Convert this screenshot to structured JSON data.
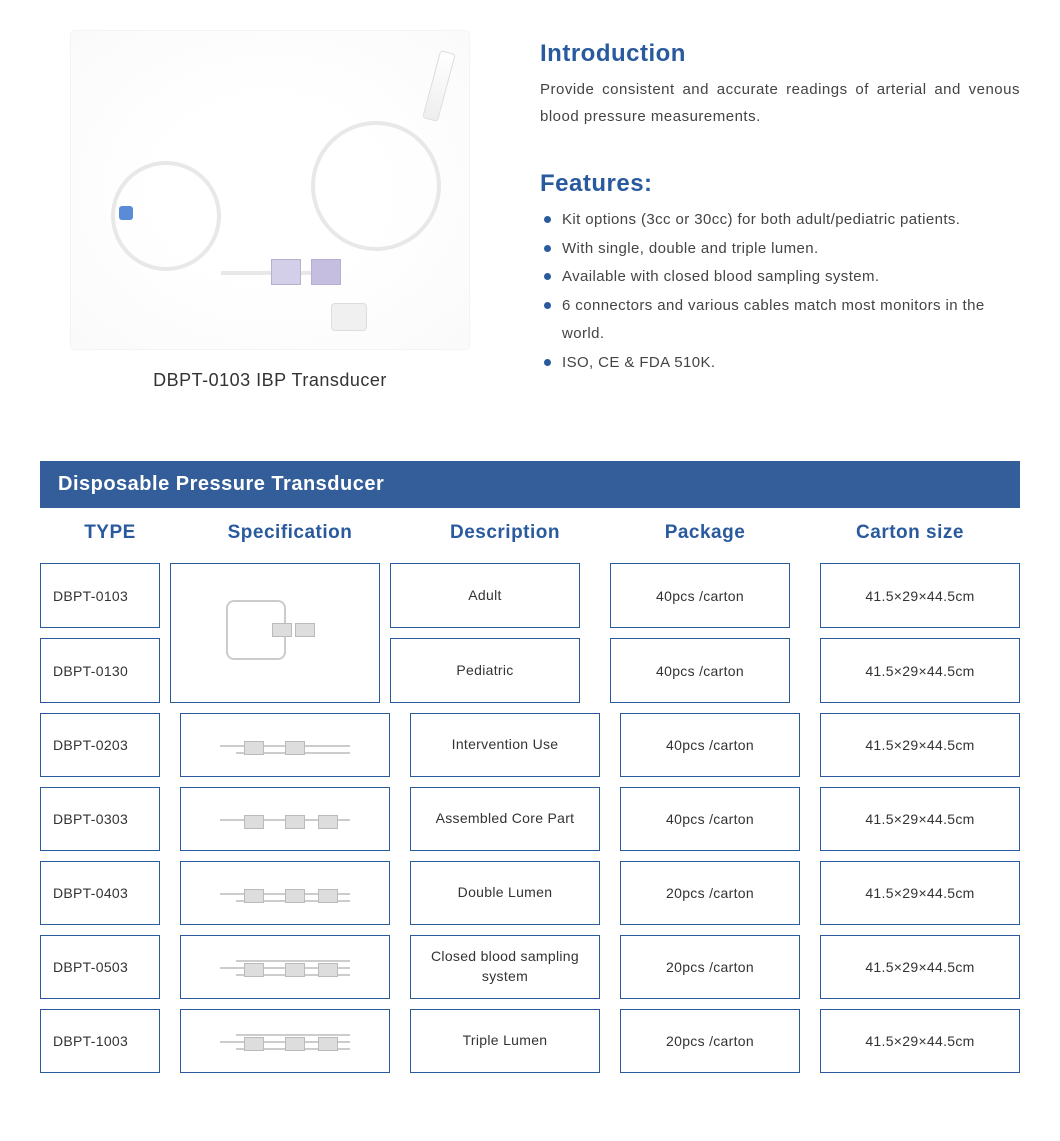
{
  "colors": {
    "primary_blue": "#2a5a9e",
    "header_bar": "#345e9a",
    "bullet": "#2a5a9e",
    "cell_border": "#2a5a9e",
    "text": "#444444"
  },
  "product": {
    "caption": "DBPT-0103 IBP Transducer"
  },
  "intro": {
    "title": "Introduction",
    "text": "Provide consistent and accurate readings of arterial and venous blood pressure measurements."
  },
  "features": {
    "title": "Features:",
    "items": [
      "Kit options (3cc or 30cc) for both adult/pediatric patients.",
      "With single, double and triple lumen.",
      "Available with closed blood sampling system.",
      "6 connectors and various cables match most monitors in the world.",
      "ISO, CE & FDA 510K."
    ]
  },
  "table": {
    "title": "Disposable Pressure Transducer",
    "columns": {
      "type": "TYPE",
      "spec": "Specification",
      "desc": "Description",
      "pack": "Package",
      "cart": "Carton  size"
    },
    "group1": {
      "types": [
        "DBPT-0103",
        "DBPT-0130"
      ],
      "rows": [
        {
          "desc": "Adult",
          "pack": "40pcs /carton",
          "cart": "41.5×29×44.5cm"
        },
        {
          "desc": "Pediatric",
          "pack": "40pcs /carton",
          "cart": "41.5×29×44.5cm"
        }
      ]
    },
    "rows": [
      {
        "type": "DBPT-0203",
        "desc": "Intervention Use",
        "pack": "40pcs /carton",
        "cart": "41.5×29×44.5cm",
        "schematic": "double"
      },
      {
        "type": "DBPT-0303",
        "desc": "Assembled Core Part",
        "pack": "40pcs /carton",
        "cart": "41.5×29×44.5cm",
        "schematic": "single"
      },
      {
        "type": "DBPT-0403",
        "desc": "Double Lumen",
        "pack": "20pcs /carton",
        "cart": "41.5×29×44.5cm",
        "schematic": "double"
      },
      {
        "type": "DBPT-0503",
        "desc": "Closed blood sampling system",
        "pack": "20pcs /carton",
        "cart": "41.5×29×44.5cm",
        "schematic": "triple"
      },
      {
        "type": "DBPT-1003",
        "desc": "Triple Lumen",
        "pack": "20pcs /carton",
        "cart": "41.5×29×44.5cm",
        "schematic": "triple"
      }
    ]
  }
}
